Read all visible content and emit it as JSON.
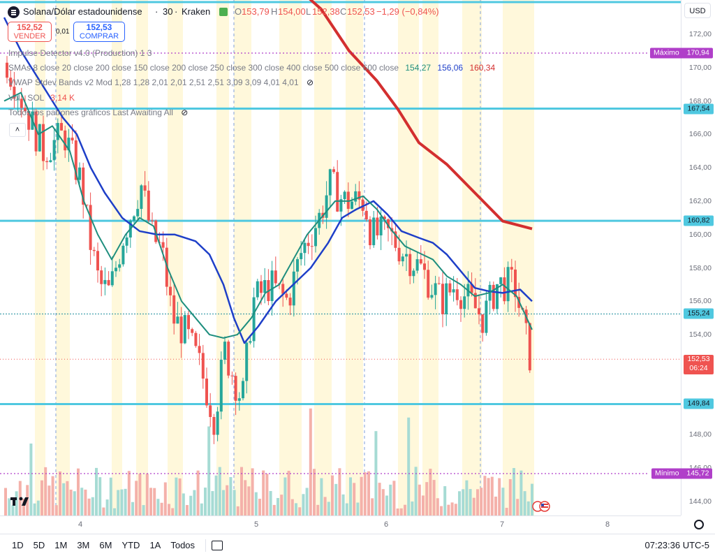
{
  "header": {
    "symbol_name": "Solana/Dólar estadounidense",
    "interval": "30",
    "exchange": "Kraken",
    "o_label": "O",
    "o_value": "153,79",
    "h_label": "H",
    "h_value": "154,00",
    "l_label": "L",
    "l_value": "152,38",
    "c_label": "C",
    "c_value": "152,53",
    "change": "−1,29 (−0,84%)",
    "sep1": "·",
    "sep2": "·"
  },
  "trade": {
    "sell_price": "152,52",
    "sell_label": "VENDER",
    "spread": "0,01",
    "buy_price": "152,53",
    "buy_label": "COMPRAR"
  },
  "currency_button": "USD",
  "indicators": [
    {
      "name": "Impulse Detector v4.0 (Production) 1 3",
      "values": []
    },
    {
      "name": "SMAs 8 close 20 close 200 close 150 close 200 close 250 close 300 close 400 close 500 close 600 close",
      "values": [
        {
          "text": "154,27",
          "color": "#1e8e7e"
        },
        {
          "text": "156,06",
          "color": "#1e3fc8"
        },
        {
          "text": "160,34",
          "color": "#d32f2f"
        }
      ]
    },
    {
      "name": "VWAP Stdev Bands v2 Mod 1,28 1,28 2,01 2,01 2,51 2,51 3,09 3,09 4,01 4,01",
      "values": []
    },
    {
      "name": "Vol · SOL",
      "values": [
        {
          "text": "3,14 K",
          "color": "#ef5350"
        }
      ]
    },
    {
      "name": "Todos los patrones gráficos Last Awaiting All",
      "values": []
    }
  ],
  "price_axis": {
    "ticks": [
      "172,00",
      "170,00",
      "168,00",
      "166,00",
      "164,00",
      "162,00",
      "160,00",
      "158,00",
      "156,00",
      "154,00",
      "150,00",
      "148,00",
      "146,00",
      "144,00"
    ],
    "tags": [
      {
        "text": "167,54",
        "bg": "#4fc8e0",
        "fg": "#131722"
      },
      {
        "text": "160,82",
        "bg": "#4fc8e0",
        "fg": "#131722"
      },
      {
        "text": "155,24",
        "bg": "#4fc8e0",
        "fg": "#131722"
      },
      {
        "text": "149,84",
        "bg": "#4fc8e0",
        "fg": "#131722"
      }
    ],
    "current_price": "152,53",
    "countdown": "06:24",
    "max_label": "Máximo",
    "max_value": "170,94",
    "min_label": "Mínimo",
    "min_value": "145,72"
  },
  "time_axis": {
    "ticks": [
      "4",
      "5",
      "6",
      "7",
      "8"
    ]
  },
  "bottom_bar": {
    "ranges": [
      "1D",
      "5D",
      "1M",
      "3M",
      "6M",
      "YTD",
      "1A",
      "Todos"
    ],
    "clock": "07:23:36 UTC-5"
  },
  "colors": {
    "up": "#26a69a",
    "down": "#ef5350",
    "hline": "#4fc8e0",
    "sma_green": "#1e8e7e",
    "sma_blue": "#1e3fc8",
    "sma_red": "#d32f2f",
    "highlight": "#fff5cf",
    "extreme": "#b03fc9"
  },
  "icons": [
    "tradingview-logo",
    "eye-off-icon",
    "chevron-up-icon",
    "settings-icon",
    "compare-calendar-icon",
    "flag-icons"
  ]
}
